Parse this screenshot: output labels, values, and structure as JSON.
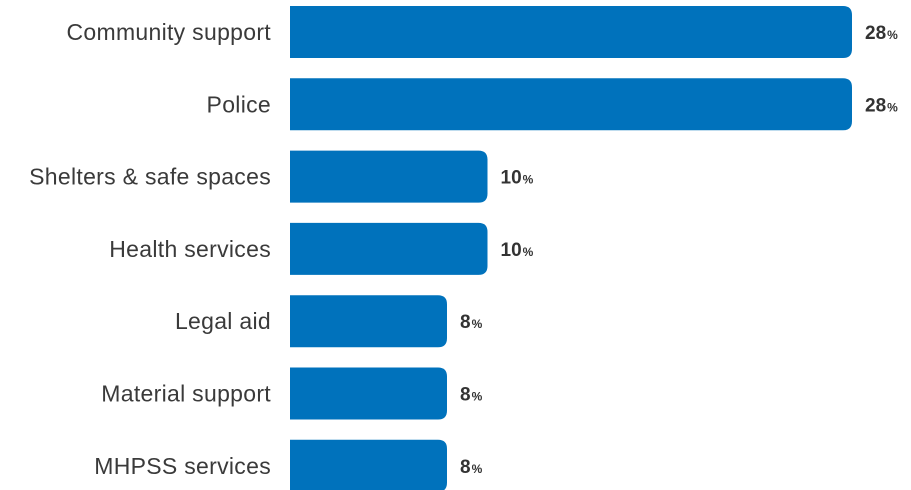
{
  "chart_data": {
    "type": "bar",
    "orientation": "horizontal",
    "categories": [
      "Community support",
      "Police",
      "Shelters & safe spaces",
      "Health services",
      "Legal aid",
      "Material support",
      "MHPSS services"
    ],
    "values": [
      28,
      28,
      10,
      10,
      8,
      8,
      8
    ],
    "value_labels": [
      "28",
      "28",
      "10",
      "10",
      "8",
      "8",
      "8"
    ],
    "unit": "%",
    "bar_color": "#0072bc",
    "title": "",
    "xlabel": "",
    "ylabel": "",
    "grid": false,
    "legend": "none"
  }
}
